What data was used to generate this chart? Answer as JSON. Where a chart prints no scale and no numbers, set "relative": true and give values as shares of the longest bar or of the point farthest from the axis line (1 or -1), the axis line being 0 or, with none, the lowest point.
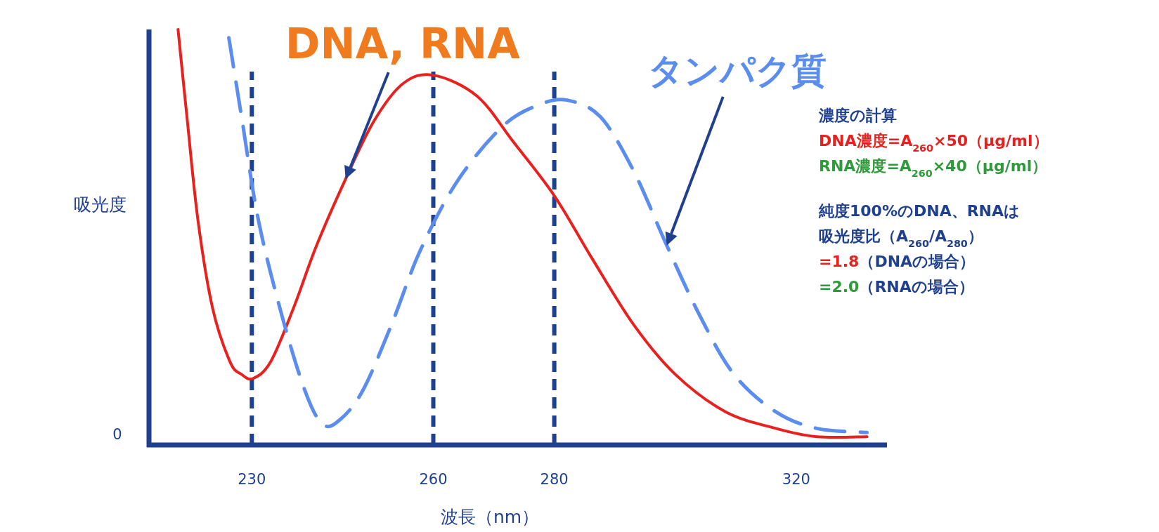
{
  "chart_data": {
    "type": "line",
    "relative": true,
    "xlabel": "波長（nm）",
    "ylabel": "吸光度",
    "xlim": [
      213,
      335
    ],
    "xticks": [
      230,
      260,
      280,
      320
    ],
    "tick_labels": "x",
    "series": [
      {
        "color": "#e8201e",
        "line_style": "solid",
        "x": [
          217.8,
          219.2,
          221.1,
          223.5,
          226.4,
          228.3,
          230.2,
          233.1,
          236.9,
          240.7,
          245.5,
          250.2,
          255.0,
          260,
          267.2,
          273.2,
          280,
          286.2,
          293.1,
          300,
          308.3,
          316.6,
          323.4,
          331.7
        ],
        "values": [
          1.0,
          0.8,
          0.54,
          0.33,
          0.2,
          0.17,
          0.16,
          0.2,
          0.33,
          0.48,
          0.64,
          0.78,
          0.87,
          0.89,
          0.84,
          0.73,
          0.6,
          0.45,
          0.29,
          0.17,
          0.08,
          0.04,
          0.02,
          0.02
        ]
      },
      {
        "color": "#5b8def",
        "line_style": "dashed",
        "x": [
          226.2,
          228.3,
          231.1,
          235,
          238.8,
          241.7,
          244.5,
          248.3,
          253.1,
          257.9,
          264.2,
          271.7,
          277.7,
          282.1,
          287.6,
          293.1,
          298.6,
          304.1,
          309.7,
          316.6,
          323.4,
          331.7
        ],
        "values": [
          0.98,
          0.79,
          0.54,
          0.31,
          0.13,
          0.05,
          0.06,
          0.13,
          0.29,
          0.47,
          0.64,
          0.77,
          0.82,
          0.83,
          0.79,
          0.66,
          0.48,
          0.31,
          0.17,
          0.08,
          0.04,
          0.03
        ]
      }
    ],
    "ref_lines": [
      {
        "axis": "x",
        "value": 230,
        "color": "#1f3f8f",
        "line_style": "dashed"
      },
      {
        "axis": "x",
        "value": 260,
        "color": "#1f3f8f",
        "line_style": "dashed"
      },
      {
        "axis": "x",
        "value": 280,
        "color": "#1f3f8f",
        "line_style": "dashed"
      }
    ],
    "annotations": [
      "DNA, RNA",
      "タンパク質",
      "0",
      "濃度の計算",
      "DNA濃度=A$_{260}$×50（μg/ml）",
      "RNA濃度=A$_{260}$×40（μg/ml）",
      "純度100%のDNA、RNAは",
      "吸光度比（A$_{260}$/A$_{280}$）",
      "=1.8（DNAの場合）",
      "=2.0（RNAの場合）"
    ]
  }
}
